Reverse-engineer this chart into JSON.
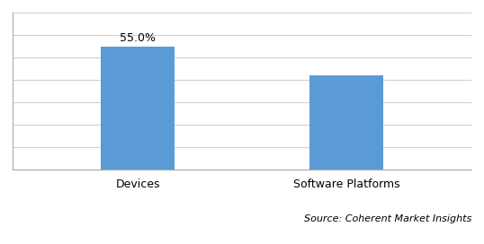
{
  "categories": [
    "Devices",
    "Software Platforms"
  ],
  "values": [
    55.0,
    42.0
  ],
  "bar_color": "#5B9BD5",
  "label_first_bar": "55.0%",
  "ylim": [
    0,
    70
  ],
  "source_text": "Source: Coherent Market Insights",
  "bar_width": 0.35,
  "label_fontsize": 9,
  "tick_fontsize": 9,
  "source_fontsize": 8,
  "background_color": "#ffffff",
  "grid_color": "#d0d0d0",
  "border_color": "#aaaaaa"
}
